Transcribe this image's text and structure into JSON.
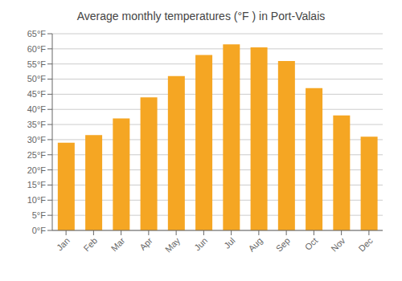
{
  "chart_data": {
    "type": "bar",
    "title": "Average monthly temperatures (°F ) in Port-Valais",
    "categories": [
      "Jan",
      "Feb",
      "Mar",
      "Apr",
      "May",
      "Jun",
      "Jul",
      "Aug",
      "Sep",
      "Oct",
      "Nov",
      "Dec"
    ],
    "values": [
      29,
      31.5,
      37,
      44,
      51,
      58,
      61.5,
      60.5,
      56,
      47,
      38,
      31
    ],
    "color": "#F5A623",
    "ylim": [
      0,
      65
    ],
    "yticks": [
      {
        "value": 0,
        "label": "0°F"
      },
      {
        "value": 5,
        "label": "5°F"
      },
      {
        "value": 10,
        "label": "10°F"
      },
      {
        "value": 15,
        "label": "15°F"
      },
      {
        "value": 20,
        "label": "20°F"
      },
      {
        "value": 25,
        "label": "25°F"
      },
      {
        "value": 30,
        "label": "30°F"
      },
      {
        "value": 35,
        "label": "35°F"
      },
      {
        "value": 40,
        "label": "40°F"
      },
      {
        "value": 45,
        "label": "45°F"
      },
      {
        "value": 50,
        "label": "50°F"
      },
      {
        "value": 55,
        "label": "55°F"
      },
      {
        "value": 60,
        "label": "60°F"
      },
      {
        "value": 65,
        "label": "65°F"
      }
    ],
    "grid": true
  }
}
